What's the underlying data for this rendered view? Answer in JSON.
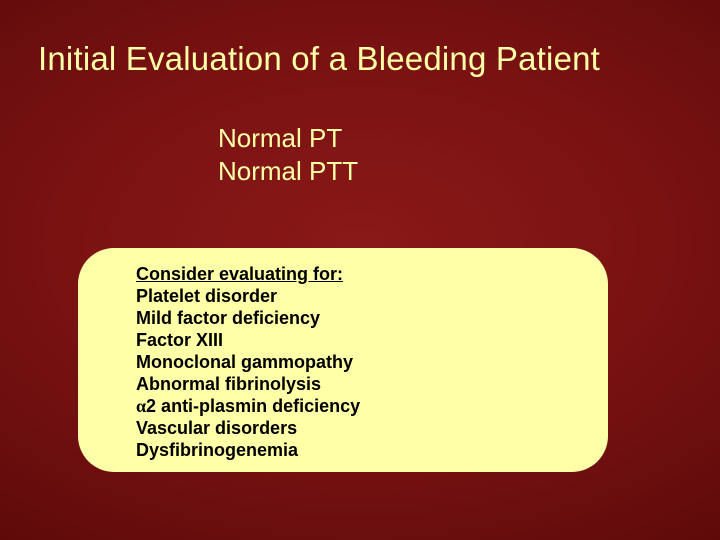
{
  "colors": {
    "background_center": "#8a1818",
    "background_edge": "#3a0404",
    "text_light": "#ffffa8",
    "panel_bg": "#ffffa8",
    "panel_text": "#000000"
  },
  "typography": {
    "title_fontsize": 33,
    "subhead_fontsize": 26,
    "panel_fontsize": 18,
    "panel_fontweight": "bold"
  },
  "layout": {
    "slide_width": 720,
    "slide_height": 540,
    "panel_border_radius": 36
  },
  "title": "Initial Evaluation of a Bleeding Patient",
  "subhead": {
    "line1": "Normal PT",
    "line2": "Normal PTT"
  },
  "panel": {
    "heading": "Consider evaluating for:",
    "items": [
      "Platelet disorder",
      "Mild factor deficiency",
      "Factor XIII",
      "Monoclonal  gammopathy",
      "Abnormal fibrinolysis",
      "α2 anti-plasmin deficiency",
      "Vascular disorders",
      "Dysfibrinogenemia"
    ]
  }
}
